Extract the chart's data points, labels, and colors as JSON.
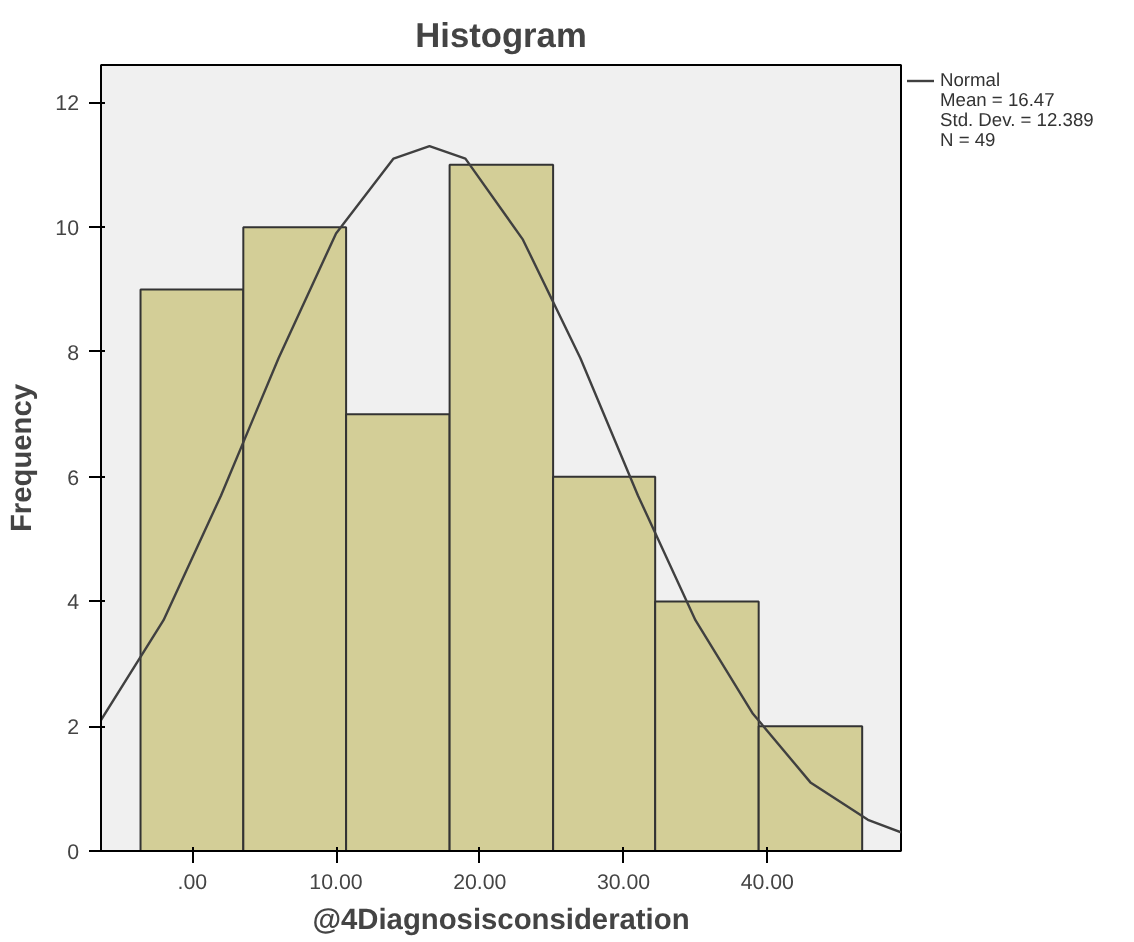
{
  "chart_data": {
    "type": "histogram",
    "title": "Histogram",
    "xlabel": "@4Diagnosisconsideration",
    "ylabel": "Frequency",
    "bins": [
      -3.6,
      3.55,
      10.7,
      17.9,
      25.1,
      32.2,
      39.4,
      46.6
    ],
    "values": [
      9,
      10,
      7,
      11,
      6,
      4,
      2
    ],
    "color": "#d3ce97",
    "series": [
      {
        "name": "Normal",
        "type": "line",
        "color": "#404040",
        "x": [
          -6.35,
          -2,
          2,
          6,
          10,
          14,
          16.5,
          19,
          23,
          27,
          31,
          35,
          39,
          43,
          47,
          49.3
        ],
        "values": [
          2.1,
          3.7,
          5.7,
          7.9,
          9.9,
          11.1,
          11.3,
          11.1,
          9.8,
          7.9,
          5.7,
          3.7,
          2.2,
          1.1,
          0.5,
          0.3
        ]
      }
    ],
    "xlim": [
      -6.35,
      49.3
    ],
    "ylim": [
      0,
      12.6
    ],
    "xticks": [
      {
        "value": 0,
        "label": ".00"
      },
      {
        "value": 10,
        "label": "10.00"
      },
      {
        "value": 20,
        "label": "20.00"
      },
      {
        "value": 30,
        "label": "30.00"
      },
      {
        "value": 40,
        "label": "40.00"
      }
    ],
    "yticks": [
      0,
      2,
      4,
      6,
      8,
      10,
      12
    ],
    "annotations": [
      "Mean = 16.47",
      "Std. Dev. = 12.389",
      "N = 49"
    ],
    "legend": "top right",
    "grid": false
  }
}
